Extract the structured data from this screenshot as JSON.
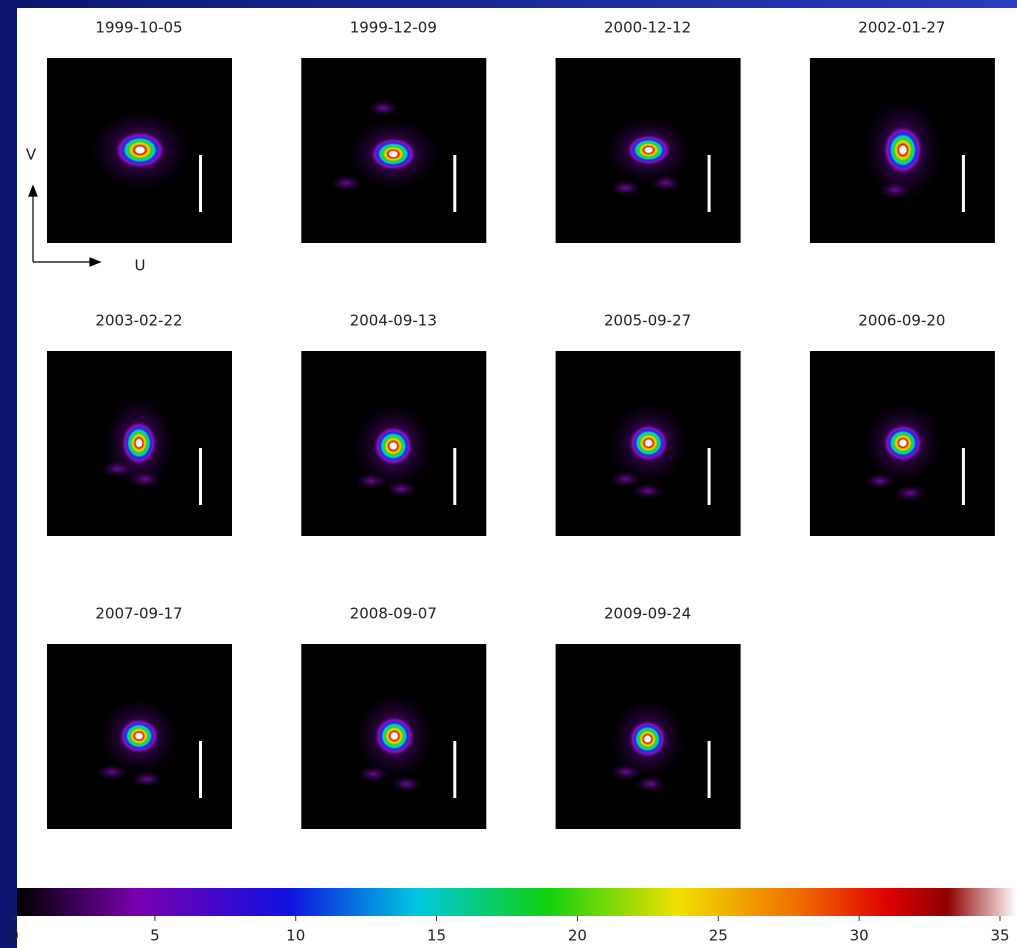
{
  "panels": [
    "1999-10-05",
    "1999-12-09",
    "2000-12-12",
    "2002-01-27",
    "2003-02-22",
    "2004-09-13",
    "2005-09-27",
    "2006-09-20",
    "2007-09-17",
    "2008-09-07",
    "2009-09-24"
  ],
  "axes": {
    "v": "V",
    "u": "U"
  },
  "colorbar": {
    "lim": [
      0,
      35
    ],
    "ticks": [
      0,
      5,
      10,
      15,
      20,
      25,
      30,
      35
    ]
  }
}
